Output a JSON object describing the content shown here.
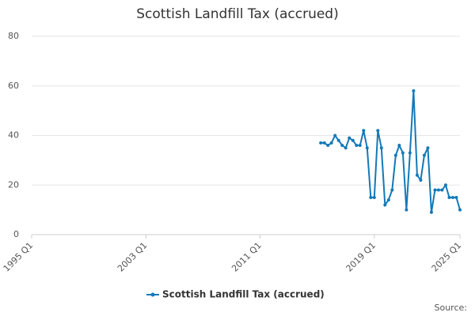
{
  "chart_data": {
    "type": "line",
    "title": "Scottish Landfill Tax (accrued)",
    "x": [
      "2015 Q2",
      "2015 Q3",
      "2015 Q4",
      "2016 Q1",
      "2016 Q2",
      "2016 Q3",
      "2016 Q4",
      "2017 Q1",
      "2017 Q2",
      "2017 Q3",
      "2017 Q4",
      "2018 Q1",
      "2018 Q2",
      "2018 Q3",
      "2018 Q4",
      "2019 Q1",
      "2019 Q2",
      "2019 Q3",
      "2019 Q4",
      "2020 Q1",
      "2020 Q2",
      "2020 Q3",
      "2020 Q4",
      "2021 Q1",
      "2021 Q2",
      "2021 Q3",
      "2021 Q4",
      "2022 Q1",
      "2022 Q2",
      "2022 Q3",
      "2022 Q4",
      "2023 Q1",
      "2023 Q2",
      "2023 Q3",
      "2023 Q4",
      "2024 Q1",
      "2024 Q2",
      "2024 Q3",
      "2024 Q4",
      "2025 Q1"
    ],
    "series": [
      {
        "name": "Scottish Landfill Tax (accrued)",
        "color": "#1479b8",
        "values": [
          37,
          37,
          36,
          37,
          40,
          38,
          36,
          35,
          39,
          38,
          36,
          36,
          42,
          35,
          15,
          15,
          42,
          35,
          12,
          14,
          18,
          32,
          36,
          33,
          10,
          33,
          58,
          24,
          22,
          32,
          35,
          9,
          18,
          18,
          18,
          20,
          15,
          15,
          15,
          10
        ]
      }
    ],
    "xlim": [
      "1995 Q1",
      "2025 Q1"
    ],
    "xticks": [
      "1995 Q1",
      "2003 Q1",
      "2011 Q1",
      "2019 Q1",
      "2025 Q1"
    ],
    "ylim": [
      0,
      80
    ],
    "yticks": [
      0,
      20,
      40,
      60,
      80
    ],
    "grid": true,
    "source": "Source:"
  }
}
